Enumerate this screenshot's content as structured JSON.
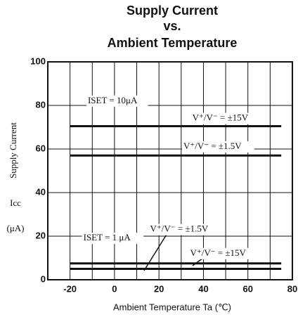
{
  "chart_data": {
    "type": "line",
    "title": [
      "Supply Current",
      "vs.",
      "Ambient Temperature"
    ],
    "xlabel": "Ambient Temperature  Ta (℃)",
    "ylabel": [
      "Supply Current",
      "Icc",
      "(μA)"
    ],
    "x": [
      -20,
      75
    ],
    "series": [
      {
        "color": "#111111",
        "values": [
          70.5,
          70.5
        ]
      },
      {
        "color": "#111111",
        "values": [
          57,
          57
        ]
      },
      {
        "color": "#111111",
        "values": [
          7.5,
          7.5
        ]
      },
      {
        "color": "#111111",
        "values": [
          5,
          5
        ]
      }
    ],
    "annotations": [
      {
        "text": "ISET = 10μA",
        "x": -12,
        "y": 82
      },
      {
        "text": "V⁺/V⁻ = ±15V",
        "x": 35,
        "y": 74
      },
      {
        "text": "V⁺/V⁻ = ±1.5V",
        "x": 31,
        "y": 61
      },
      {
        "text": "ISET = 1 μA",
        "x": -14,
        "y": 19
      },
      {
        "text": "V⁺/V⁻ = ±1.5V",
        "x": 16,
        "y": 23
      },
      {
        "text": "V⁺/V⁻ = ±15V",
        "x": 34,
        "y": 12
      }
    ],
    "xlim": [
      -30,
      80
    ],
    "xticks": [
      -20,
      0,
      20,
      40,
      60,
      80
    ],
    "xgrid": [
      -20,
      -10,
      0,
      10,
      20,
      30,
      40,
      50,
      60,
      70,
      80
    ],
    "ylim": [
      0,
      100
    ],
    "yticks": [
      0,
      20,
      40,
      60,
      80,
      100
    ],
    "grid": true
  }
}
